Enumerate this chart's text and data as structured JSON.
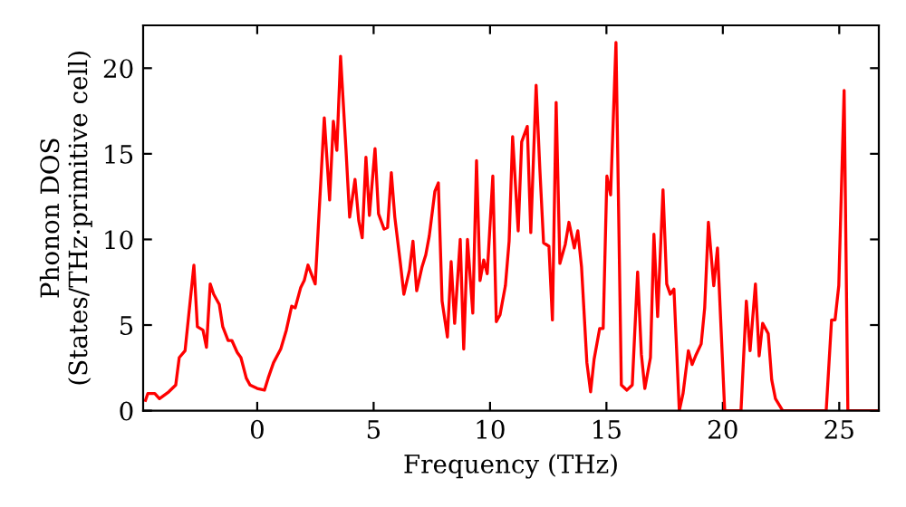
{
  "chart_data": {
    "type": "line",
    "xlabel": "Frequency (THz)",
    "ylabel": "Phonon DOS\n(States/THz·primitive cell)",
    "xlim": [
      -4.9,
      26.7
    ],
    "ylim": [
      0,
      22.5
    ],
    "xticks": [
      0,
      5,
      10,
      15,
      20,
      25
    ],
    "yticks": [
      0,
      5,
      10,
      15,
      20
    ],
    "grid": false,
    "legend": false,
    "marker": "none",
    "line_style": "solid",
    "series": [
      {
        "color": "#ff0000",
        "x": [
          -4.8,
          -4.7,
          -4.4,
          -4.2,
          -3.8,
          -3.5,
          -3.35,
          -3.1,
          -2.72,
          -2.57,
          -2.33,
          -2.18,
          -2.02,
          -1.87,
          -1.63,
          -1.48,
          -1.25,
          -1.09,
          -0.86,
          -0.7,
          -0.47,
          -0.31,
          0,
          0.31,
          0.47,
          0.7,
          1.01,
          1.25,
          1.48,
          1.63,
          1.87,
          2.02,
          2.18,
          2.49,
          2.88,
          3.11,
          3.27,
          3.42,
          3.58,
          3.81,
          3.97,
          4.2,
          4.36,
          4.51,
          4.67,
          4.82,
          5.06,
          5.21,
          5.45,
          5.6,
          5.76,
          5.91,
          6.15,
          6.3,
          6.54,
          6.69,
          6.85,
          7.08,
          7.24,
          7.39,
          7.63,
          7.78,
          7.94,
          8.17,
          8.33,
          8.48,
          8.72,
          8.87,
          9.03,
          9.26,
          9.42,
          9.57,
          9.73,
          9.88,
          10.12,
          10.27,
          10.43,
          10.66,
          10.82,
          10.97,
          11.21,
          11.36,
          11.6,
          11.75,
          11.98,
          12.14,
          12.3,
          12.53,
          12.68,
          12.84,
          13.0,
          13.23,
          13.39,
          13.62,
          13.77,
          13.93,
          14.16,
          14.32,
          14.47,
          14.71,
          14.86,
          15.02,
          15.18,
          15.41,
          15.64,
          15.88,
          16.11,
          16.34,
          16.5,
          16.65,
          16.89,
          17.04,
          17.2,
          17.43,
          17.59,
          17.74,
          17.9,
          18.13,
          18.29,
          18.52,
          18.68,
          18.83,
          19.07,
          19.22,
          19.38,
          19.61,
          19.77,
          20.08,
          20.78,
          21.01,
          21.17,
          21.4,
          21.56,
          21.71,
          21.95,
          22.1,
          22.26,
          22.57,
          24.44,
          24.67,
          24.82,
          24.98,
          25.21,
          25.37,
          26.7
        ],
        "values": [
          0.6,
          1.0,
          1.0,
          0.7,
          1.1,
          1.5,
          3.1,
          3.5,
          8.5,
          4.9,
          4.7,
          3.7,
          7.4,
          6.8,
          6.2,
          4.9,
          4.1,
          4.1,
          3.4,
          3.1,
          1.9,
          1.5,
          1.3,
          1.2,
          1.9,
          2.8,
          3.6,
          4.7,
          6.1,
          6.0,
          7.2,
          7.6,
          8.5,
          7.4,
          17.1,
          12.3,
          16.9,
          15.2,
          20.7,
          15.3,
          11.3,
          13.5,
          11.1,
          10.1,
          14.8,
          11.4,
          15.3,
          11.5,
          10.6,
          10.7,
          13.9,
          11.3,
          8.6,
          6.8,
          8.2,
          9.9,
          7.0,
          8.4,
          9.1,
          10.2,
          12.8,
          13.3,
          6.4,
          4.3,
          8.7,
          5.1,
          10.0,
          3.6,
          10.0,
          5.7,
          14.6,
          7.6,
          8.8,
          8.0,
          13.7,
          5.2,
          5.6,
          7.3,
          9.9,
          16.0,
          10.5,
          15.7,
          16.6,
          10.4,
          19.0,
          14.1,
          9.8,
          9.6,
          5.3,
          18.0,
          8.6,
          9.7,
          11.0,
          9.5,
          10.5,
          8.4,
          2.8,
          1.1,
          3.0,
          4.8,
          4.8,
          13.7,
          12.6,
          21.5,
          1.5,
          1.2,
          1.5,
          8.1,
          3.3,
          1.3,
          3.1,
          10.3,
          5.5,
          12.9,
          7.4,
          6.8,
          7.1,
          0,
          1.0,
          3.5,
          2.7,
          3.2,
          3.9,
          6.0,
          11.0,
          7.3,
          9.5,
          0,
          0,
          6.4,
          3.5,
          7.4,
          3.2,
          5.1,
          4.5,
          1.8,
          0.7,
          0,
          0,
          5.3,
          5.3,
          7.3,
          18.7,
          0,
          0
        ]
      }
    ]
  }
}
